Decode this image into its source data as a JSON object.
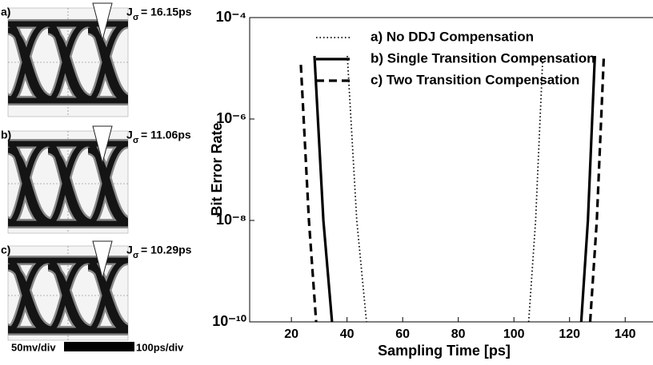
{
  "eye_diagrams": [
    {
      "label": "a)",
      "jitter_symbol": "J",
      "jitter_subscript": "σ",
      "jitter_text": "= 16.15ps"
    },
    {
      "label": "b)",
      "jitter_symbol": "J",
      "jitter_subscript": "σ",
      "jitter_text": "= 11.06ps"
    },
    {
      "label": "c)",
      "jitter_symbol": "J",
      "jitter_subscript": "σ",
      "jitter_text": "= 10.29ps"
    }
  ],
  "eye_scale": {
    "vertical": "50mv/div",
    "horizontal": "100ps/div"
  },
  "chart_data": {
    "type": "line",
    "x_label": "Sampling Time [ps]",
    "y_label": "Bit Error Rate",
    "xlim": [
      5,
      150
    ],
    "xticks": [
      20,
      40,
      60,
      80,
      100,
      120,
      140
    ],
    "ylim": [
      1e-10,
      0.0001
    ],
    "log_y": true,
    "yticks": [
      {
        "value": 1e-10,
        "label": "10⁻¹⁰"
      },
      {
        "value": 1e-08,
        "label": "10⁻⁸"
      },
      {
        "value": 1e-06,
        "label": "10⁻⁶"
      },
      {
        "value": 0.0001,
        "label": "10⁻⁴"
      }
    ],
    "legend": "upper center",
    "series": [
      {
        "name": "a) No DDJ Compensation",
        "color": "#000000",
        "style": "dotted",
        "x": [
          40.1,
          43.5,
          47.0,
          null,
          105.3,
          107.8,
          110.4
        ],
        "values": [
          1.75e-05,
          1e-08,
          1e-10,
          null,
          1e-10,
          1e-08,
          1.75e-05
        ]
      },
      {
        "name": "b) Single Transition Compensation",
        "color": "#000000",
        "style": "solid",
        "x": [
          28.3,
          31.5,
          34.6,
          null,
          124.2,
          126.6,
          129.1
        ],
        "values": [
          1.75e-05,
          1e-08,
          1e-10,
          null,
          1e-10,
          1e-08,
          1.75e-05
        ]
      },
      {
        "name": "c) Two Transition Compensation",
        "color": "#000000",
        "style": "dashed",
        "x": [
          23.4,
          26.3,
          28.9,
          null,
          127.4,
          129.8,
          132.3
        ],
        "values": [
          1.17e-05,
          1e-08,
          1e-10,
          null,
          1e-10,
          1e-08,
          1.6e-05
        ]
      }
    ]
  }
}
